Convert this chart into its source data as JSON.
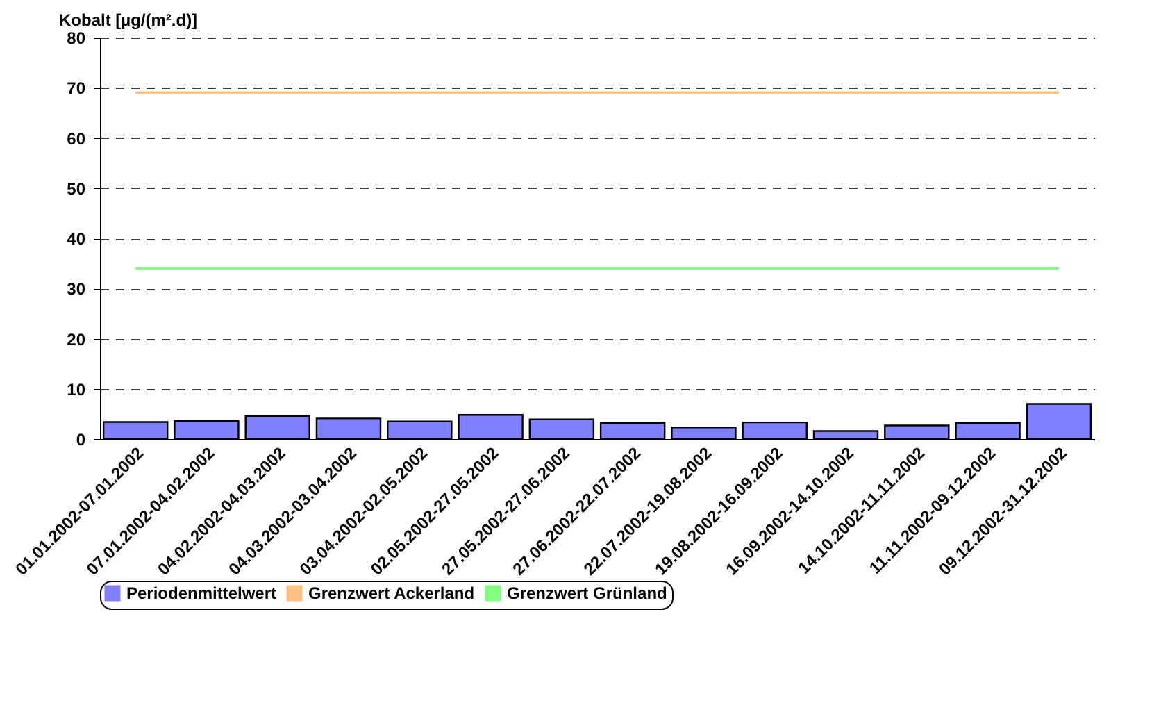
{
  "chart_data": {
    "type": "bar",
    "ylabel": "Kobalt [µg/(m².d)]",
    "categories": [
      "01.01.2002-07.01.2002",
      "07.01.2002-04.02.2002",
      "04.02.2002-04.03.2002",
      "04.03.2002-03.04.2002",
      "03.04.2002-02.05.2002",
      "02.05.2002-27.05.2002",
      "27.05.2002-27.06.2002",
      "27.06.2002-22.07.2002",
      "22.07.2002-19.08.2002",
      "19.08.2002-16.09.2002",
      "16.09.2002-14.10.2002",
      "14.10.2002-11.11.2002",
      "11.11.2002-09.12.2002",
      "09.12.2002-31.12.2002"
    ],
    "series": [
      {
        "name": "Periodenmittelwert",
        "color": "#8080ff",
        "values": [
          3.4,
          3.6,
          4.6,
          4.1,
          3.5,
          4.8,
          3.9,
          3.2,
          2.3,
          3.3,
          1.6,
          2.7,
          3.2,
          7.0
        ]
      },
      {
        "name": "Grenzwert Ackerland",
        "type": "line",
        "color": "#ffc080",
        "values": [
          69,
          69,
          69,
          69,
          69,
          69,
          69,
          69,
          69,
          69,
          69,
          69,
          69,
          69
        ]
      },
      {
        "name": "Grenzwert Grünland",
        "type": "line",
        "color": "#80ff80",
        "values": [
          34,
          34,
          34,
          34,
          34,
          34,
          34,
          34,
          34,
          34,
          34,
          34,
          34,
          34
        ]
      }
    ],
    "ylim": [
      0,
      80
    ],
    "yticks": [
      0,
      10,
      20,
      30,
      40,
      50,
      60,
      70,
      80
    ],
    "grid": "y",
    "legend": "bottom",
    "marker": "none",
    "line_style": "solid"
  }
}
